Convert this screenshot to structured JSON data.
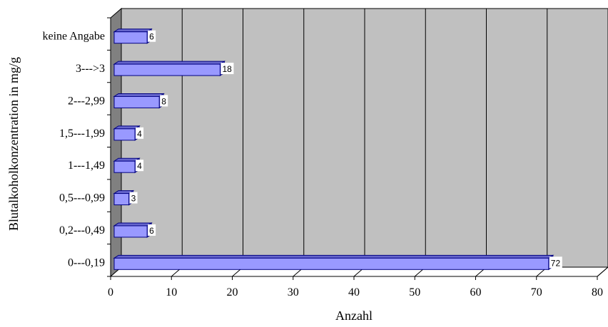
{
  "chart_data": {
    "type": "bar",
    "orientation": "horizontal",
    "style": "3d",
    "title": "",
    "xlabel": "Anzahl",
    "ylabel": "Blutalkoholkonzentration in mg/g",
    "categories": [
      "keine Angabe",
      "3--->3",
      "2---2,99",
      "1,5---1,99",
      "1---1,49",
      "0,5---0,99",
      "0,2---0,49",
      "0---0,19"
    ],
    "values": [
      6,
      18,
      8,
      4,
      4,
      3,
      6,
      72
    ],
    "xlim": [
      0,
      80
    ],
    "xticks": [
      0,
      10,
      20,
      30,
      40,
      50,
      60,
      70,
      80
    ],
    "grid": true,
    "colors": {
      "bar_front": "#9999ff",
      "bar_top": "#6666cc",
      "bar_edge": "#000080",
      "wall": "#c0c0c0",
      "side_wall": "#808080",
      "floor": "#ffffff"
    }
  }
}
